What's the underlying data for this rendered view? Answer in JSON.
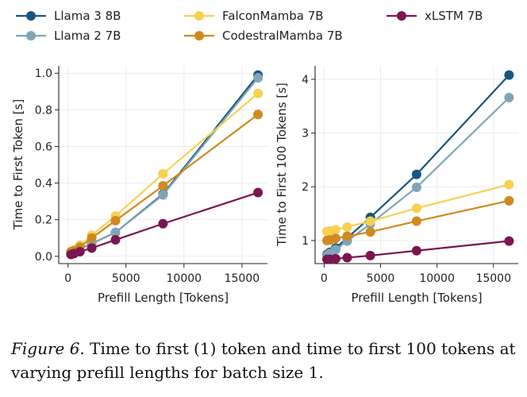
{
  "legend": [
    {
      "name": "Llama 3 8B",
      "color": "#1a5580"
    },
    {
      "name": "Llama 2 7B",
      "color": "#7fa5b7"
    },
    {
      "name": "FalconMamba 7B",
      "color": "#f7d152"
    },
    {
      "name": "CodestralMamba 7B",
      "color": "#cf8a1f"
    },
    {
      "name": "xLSTM 7B",
      "color": "#7a1650"
    }
  ],
  "chart_data": [
    {
      "type": "line",
      "xlabel": "Prefill Length [Tokens]",
      "ylabel": "Time to First Token [s]",
      "xlim": [
        -800,
        17200
      ],
      "ylim": [
        -0.04,
        1.04
      ],
      "xticks": [
        0,
        5000,
        10000,
        15000
      ],
      "xtick_labels": [
        "0",
        "5000",
        "10000",
        "15000"
      ],
      "yticks": [
        0.0,
        0.2,
        0.4,
        0.6,
        0.8,
        1.0
      ],
      "ytick_labels": [
        "0.0",
        "0.2",
        "0.4",
        "0.6",
        "0.8",
        "1.0"
      ],
      "x": [
        256,
        512,
        1024,
        2048,
        4096,
        8192,
        16384
      ],
      "series": [
        {
          "name": "Llama 3 8B",
          "color": "#1a5580",
          "values": [
            0.02,
            0.025,
            0.04,
            0.07,
            0.13,
            0.34,
            0.99
          ]
        },
        {
          "name": "Llama 2 7B",
          "color": "#7fa5b7",
          "values": [
            0.02,
            0.025,
            0.04,
            0.07,
            0.13,
            0.335,
            0.975
          ]
        },
        {
          "name": "FalconMamba 7B",
          "color": "#f7d152",
          "values": [
            0.025,
            0.035,
            0.06,
            0.115,
            0.22,
            0.45,
            0.89
          ]
        },
        {
          "name": "CodestralMamba 7B",
          "color": "#cf8a1f",
          "values": [
            0.025,
            0.03,
            0.05,
            0.1,
            0.195,
            0.385,
            0.775
          ]
        },
        {
          "name": "xLSTM 7B",
          "color": "#7a1650",
          "values": [
            0.01,
            0.015,
            0.025,
            0.045,
            0.09,
            0.178,
            0.348
          ]
        }
      ]
    },
    {
      "type": "line",
      "xlabel": "Prefill Length [Tokens]",
      "ylabel": "Time to First 100 Tokens [s]",
      "xlim": [
        -800,
        17200
      ],
      "ylim": [
        0.57,
        4.25
      ],
      "xticks": [
        0,
        5000,
        10000,
        15000
      ],
      "xtick_labels": [
        "0",
        "5000",
        "10000",
        "15000"
      ],
      "yticks": [
        1,
        2,
        3,
        4
      ],
      "ytick_labels": [
        "1",
        "2",
        "3",
        "4"
      ],
      "x": [
        256,
        512,
        1024,
        2048,
        4096,
        8192,
        16384
      ],
      "series": [
        {
          "name": "Llama 3 8B",
          "color": "#1a5580",
          "values": [
            0.74,
            0.78,
            0.86,
            1.05,
            1.43,
            2.23,
            4.08
          ]
        },
        {
          "name": "Llama 2 7B",
          "color": "#7fa5b7",
          "values": [
            0.72,
            0.76,
            0.83,
            0.99,
            1.31,
            1.99,
            3.66
          ]
        },
        {
          "name": "FalconMamba 7B",
          "color": "#f7d152",
          "values": [
            1.17,
            1.18,
            1.2,
            1.25,
            1.36,
            1.6,
            2.04
          ]
        },
        {
          "name": "CodestralMamba 7B",
          "color": "#cf8a1f",
          "values": [
            1.0,
            1.01,
            1.04,
            1.08,
            1.16,
            1.36,
            1.74
          ]
        },
        {
          "name": "xLSTM 7B",
          "color": "#7a1650",
          "values": [
            0.65,
            0.65,
            0.66,
            0.68,
            0.72,
            0.81,
            0.99
          ]
        }
      ]
    }
  ],
  "caption": {
    "label": "Figure 6.",
    "text": " Time to first (1) token and time to first 100 tokens at varying prefill lengths for batch size 1."
  }
}
